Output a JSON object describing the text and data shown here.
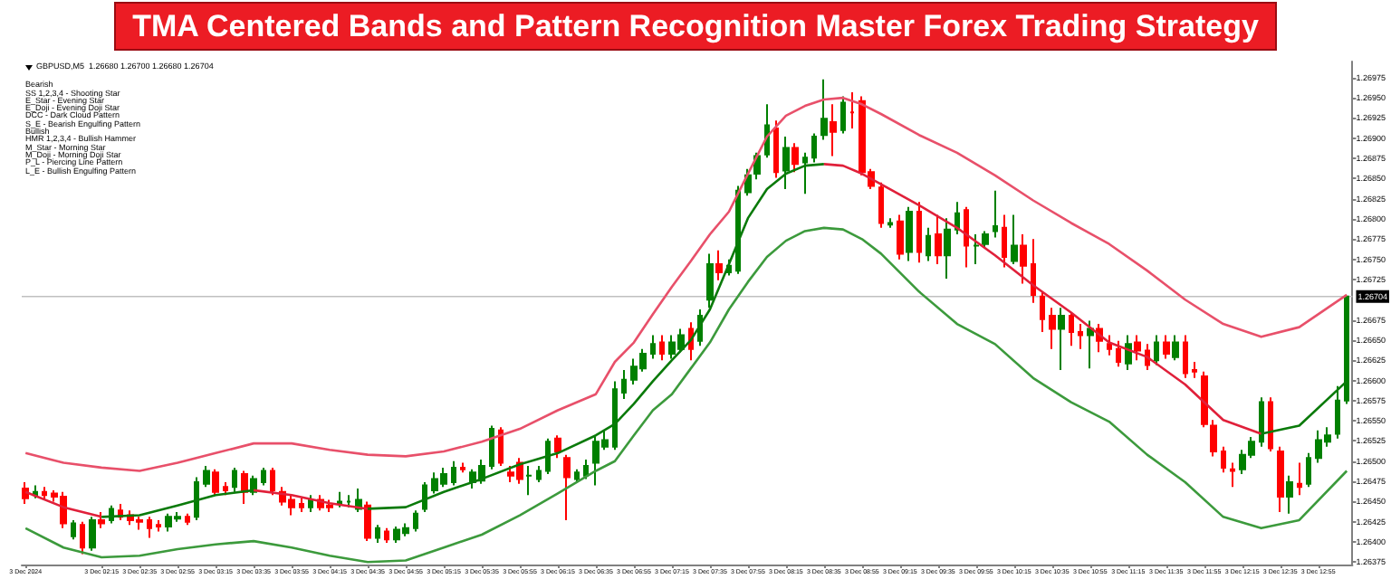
{
  "chart_data": {
    "type": "candlestick",
    "title": "TMA Centered Bands and Pattern Recognition Master Forex Trading Strategy",
    "annotations": [
      "GBPUSD,M5  1.26680 1.26700 1.26680 1.26704",
      "Bearish",
      "SS 1,2,3,4 - Shooting Star",
      "E_Star - Evening Star",
      "E_Doji - Evening Doji Star",
      "DCC - Dark Cloud Pattern",
      "S_E - Bearish Engulfing Pattern",
      "Bullish",
      "HMR 1,2,3,4 - Bullish Hammer",
      "M_Star - Morning Star",
      "M_Doji - Morning Doji Star",
      "P_L - Piercing Line Pattern",
      "L_E - Bullish Engulfing Pattern"
    ],
    "x": [
      "2024-12-03T01:35",
      "2024-12-03T01:40",
      "2024-12-03T01:45",
      "2024-12-03T01:50",
      "2024-12-03T01:55",
      "2024-12-03T02:00",
      "2024-12-03T02:05",
      "2024-12-03T02:10",
      "2024-12-03T02:15",
      "2024-12-03T02:20",
      "2024-12-03T02:25",
      "2024-12-03T02:30",
      "2024-12-03T02:35",
      "2024-12-03T02:40",
      "2024-12-03T02:45",
      "2024-12-03T02:50",
      "2024-12-03T02:55",
      "2024-12-03T03:00",
      "2024-12-03T03:05",
      "2024-12-03T03:10",
      "2024-12-03T03:15",
      "2024-12-03T03:20",
      "2024-12-03T03:25",
      "2024-12-03T03:30",
      "2024-12-03T03:35",
      "2024-12-03T03:40",
      "2024-12-03T03:45",
      "2024-12-03T03:50",
      "2024-12-03T03:55",
      "2024-12-03T04:00",
      "2024-12-03T04:05",
      "2024-12-03T04:10",
      "2024-12-03T04:15",
      "2024-12-03T04:20",
      "2024-12-03T04:25",
      "2024-12-03T04:30",
      "2024-12-03T04:35",
      "2024-12-03T04:40",
      "2024-12-03T04:45",
      "2024-12-03T04:50",
      "2024-12-03T04:55",
      "2024-12-03T05:00",
      "2024-12-03T05:05",
      "2024-12-03T05:10",
      "2024-12-03T05:15",
      "2024-12-03T05:20",
      "2024-12-03T05:25",
      "2024-12-03T05:30",
      "2024-12-03T05:35",
      "2024-12-03T05:40",
      "2024-12-03T05:45",
      "2024-12-03T05:50",
      "2024-12-03T05:55",
      "2024-12-03T06:00",
      "2024-12-03T06:05",
      "2024-12-03T06:10",
      "2024-12-03T06:15",
      "2024-12-03T06:20",
      "2024-12-03T06:25",
      "2024-12-03T06:30",
      "2024-12-03T06:35",
      "2024-12-03T06:40",
      "2024-12-03T06:45",
      "2024-12-03T06:50",
      "2024-12-03T06:55",
      "2024-12-03T07:00",
      "2024-12-03T07:05",
      "2024-12-03T07:10",
      "2024-12-03T07:15",
      "2024-12-03T07:20",
      "2024-12-03T07:25",
      "2024-12-03T07:30",
      "2024-12-03T07:35",
      "2024-12-03T07:40",
      "2024-12-03T07:45",
      "2024-12-03T07:50",
      "2024-12-03T07:55",
      "2024-12-03T08:00",
      "2024-12-03T08:05",
      "2024-12-03T08:10",
      "2024-12-03T08:15",
      "2024-12-03T08:20",
      "2024-12-03T08:25",
      "2024-12-03T08:30",
      "2024-12-03T08:35",
      "2024-12-03T08:40",
      "2024-12-03T08:45",
      "2024-12-03T08:50",
      "2024-12-03T08:55",
      "2024-12-03T09:00",
      "2024-12-03T09:05",
      "2024-12-03T09:10",
      "2024-12-03T09:15",
      "2024-12-03T09:20",
      "2024-12-03T09:25",
      "2024-12-03T09:30",
      "2024-12-03T09:35",
      "2024-12-03T09:40",
      "2024-12-03T09:45",
      "2024-12-03T09:50",
      "2024-12-03T09:55",
      "2024-12-03T10:00",
      "2024-12-03T10:05",
      "2024-12-03T10:10",
      "2024-12-03T10:15",
      "2024-12-03T10:20",
      "2024-12-03T10:25",
      "2024-12-03T10:30",
      "2024-12-03T10:35",
      "2024-12-03T10:40",
      "2024-12-03T10:45",
      "2024-12-03T10:50",
      "2024-12-03T10:55",
      "2024-12-03T11:00",
      "2024-12-03T11:05",
      "2024-12-03T11:10",
      "2024-12-03T11:15",
      "2024-12-03T11:20",
      "2024-12-03T11:25",
      "2024-12-03T11:30",
      "2024-12-03T11:35",
      "2024-12-03T11:40",
      "2024-12-03T11:45",
      "2024-12-03T11:50",
      "2024-12-03T11:55",
      "2024-12-03T12:00",
      "2024-12-03T12:05",
      "2024-12-03T12:10",
      "2024-12-03T12:15",
      "2024-12-03T12:20",
      "2024-12-03T12:25",
      "2024-12-03T12:30",
      "2024-12-03T12:35",
      "2024-12-03T12:40",
      "2024-12-03T12:45",
      "2024-12-03T12:50",
      "2024-12-03T12:55",
      "2024-12-03T13:00",
      "2024-12-03T13:05",
      "2024-12-03T13:10"
    ],
    "ohlc": [
      [
        1.26466,
        1.26474,
        1.26447,
        1.26454
      ],
      [
        1.26458,
        1.2647,
        1.26454,
        1.26462
      ],
      [
        1.26462,
        1.26468,
        1.26452,
        1.26458
      ],
      [
        1.2646,
        1.26464,
        1.2645,
        1.26456
      ],
      [
        1.26456,
        1.26462,
        1.26417,
        1.26423
      ],
      [
        1.26407,
        1.26427,
        1.26403,
        1.26423
      ],
      [
        1.26421,
        1.26425,
        1.26385,
        1.26393
      ],
      [
        1.26393,
        1.26431,
        1.26389,
        1.26427
      ],
      [
        1.26427,
        1.26437,
        1.26417,
        1.26423
      ],
      [
        1.26427,
        1.26445,
        1.26423,
        1.26441
      ],
      [
        1.26439,
        1.26447,
        1.26427,
        1.26431
      ],
      [
        1.26433,
        1.26439,
        1.26421,
        1.26427
      ],
      [
        1.26427,
        1.26431,
        1.26415,
        1.26425
      ],
      [
        1.26427,
        1.26431,
        1.26405,
        1.26417
      ],
      [
        1.26421,
        1.26427,
        1.26413,
        1.26419
      ],
      [
        1.26419,
        1.26435,
        1.26413,
        1.26431
      ],
      [
        1.26429,
        1.26437,
        1.26425,
        1.26431
      ],
      [
        1.26431,
        1.26435,
        1.26421,
        1.26425
      ],
      [
        1.26431,
        1.2648,
        1.26427,
        1.26474
      ],
      [
        1.26472,
        1.26494,
        1.26468,
        1.26488
      ],
      [
        1.26486,
        1.2649,
        1.26458,
        1.26462
      ],
      [
        1.26468,
        1.26474,
        1.26458,
        1.26464
      ],
      [
        1.26468,
        1.26492,
        1.26462,
        1.26488
      ],
      [
        1.26484,
        1.26488,
        1.26447,
        1.26462
      ],
      [
        1.26462,
        1.26482,
        1.26458,
        1.26478
      ],
      [
        1.26474,
        1.26492,
        1.2647,
        1.26488
      ],
      [
        1.26488,
        1.26492,
        1.26458,
        1.26464
      ],
      [
        1.26462,
        1.26468,
        1.26445,
        1.2645
      ],
      [
        1.26452,
        1.26458,
        1.26433,
        1.26443
      ],
      [
        1.26447,
        1.26454,
        1.26437,
        1.26443
      ],
      [
        1.26443,
        1.26458,
        1.26437,
        1.26452
      ],
      [
        1.26452,
        1.26458,
        1.26439,
        1.26443
      ],
      [
        1.26445,
        1.26452,
        1.26437,
        1.26443
      ],
      [
        1.26447,
        1.26462,
        1.26443,
        1.2645
      ],
      [
        1.2645,
        1.26458,
        1.26443,
        1.2645
      ],
      [
        1.26441,
        1.26466,
        1.26437,
        1.26452
      ],
      [
        1.26445,
        1.2645,
        1.26401,
        1.26405
      ],
      [
        1.26405,
        1.26421,
        1.26399,
        1.26417
      ],
      [
        1.26413,
        1.26417,
        1.26399,
        1.26403
      ],
      [
        1.26403,
        1.26419,
        1.26399,
        1.26415
      ],
      [
        1.26411,
        1.26423,
        1.26407,
        1.26417
      ],
      [
        1.26417,
        1.26439,
        1.26413,
        1.26435
      ],
      [
        1.26441,
        1.26474,
        1.26437,
        1.2647
      ],
      [
        1.26464,
        1.26486,
        1.2646,
        1.26478
      ],
      [
        1.26472,
        1.26492,
        1.26468,
        1.26484
      ],
      [
        1.26474,
        1.265,
        1.2647,
        1.26492
      ],
      [
        1.26492,
        1.26498,
        1.26486,
        1.2649
      ],
      [
        1.26474,
        1.2649,
        1.26466,
        1.26486
      ],
      [
        1.26476,
        1.26502,
        1.26472,
        1.26494
      ],
      [
        1.26494,
        1.26544,
        1.2649,
        1.2654
      ],
      [
        1.26538,
        1.26542,
        1.26494,
        1.26498
      ],
      [
        1.26486,
        1.26494,
        1.26474,
        1.26482
      ],
      [
        1.26498,
        1.26504,
        1.26472,
        1.26478
      ],
      [
        1.26482,
        1.26494,
        1.26458,
        1.26482
      ],
      [
        1.26478,
        1.26494,
        1.26474,
        1.26488
      ],
      [
        1.26488,
        1.26528,
        1.26484,
        1.26524
      ],
      [
        1.26528,
        1.26532,
        1.26504,
        1.26512
      ],
      [
        1.26504,
        1.26508,
        1.26427,
        1.2648
      ],
      [
        1.26478,
        1.2649,
        1.26474,
        1.26486
      ],
      [
        1.26482,
        1.26502,
        1.26478,
        1.26494
      ],
      [
        1.26498,
        1.2653,
        1.2647,
        1.26524
      ],
      [
        1.26518,
        1.26538,
        1.26514,
        1.26526
      ],
      [
        1.26518,
        1.26599,
        1.26514,
        1.26589
      ],
      [
        1.26585,
        1.26613,
        1.26577,
        1.26601
      ],
      [
        1.26601,
        1.26627,
        1.26595,
        1.26617
      ],
      [
        1.26615,
        1.26639,
        1.26611,
        1.26633
      ],
      [
        1.26633,
        1.26656,
        1.26627,
        1.26645
      ],
      [
        1.26647,
        1.26656,
        1.26625,
        1.26633
      ],
      [
        1.26633,
        1.26656,
        1.26627,
        1.26647
      ],
      [
        1.26639,
        1.26664,
        1.26635,
        1.26656
      ],
      [
        1.26664,
        1.26672,
        1.26625,
        1.26639
      ],
      [
        1.26649,
        1.26688,
        1.26643,
        1.2668
      ],
      [
        1.267,
        1.26757,
        1.2669,
        1.26744
      ],
      [
        1.26744,
        1.26761,
        1.26724,
        1.26734
      ],
      [
        1.26734,
        1.2675,
        1.2673,
        1.26742
      ],
      [
        1.26736,
        1.26841,
        1.26732,
        1.26835
      ],
      [
        1.26833,
        1.26862,
        1.26829,
        1.26854
      ],
      [
        1.26856,
        1.26882,
        1.26849,
        1.26878
      ],
      [
        1.2688,
        1.26942,
        1.26876,
        1.26916
      ],
      [
        1.26912,
        1.26922,
        1.26851,
        1.26858
      ],
      [
        1.2686,
        1.26902,
        1.26837,
        1.26888
      ],
      [
        1.26888,
        1.26894,
        1.26858,
        1.26868
      ],
      [
        1.2687,
        1.26882,
        1.26831,
        1.26876
      ],
      [
        1.26876,
        1.26906,
        1.2687,
        1.26902
      ],
      [
        1.26904,
        1.26973,
        1.26898,
        1.26924
      ],
      [
        1.2692,
        1.26942,
        1.26878,
        1.26908
      ],
      [
        1.2691,
        1.26952,
        1.26906,
        1.26944
      ],
      [
        1.26932,
        1.26957,
        1.26912,
        1.26932
      ],
      [
        1.26946,
        1.26952,
        1.26854,
        1.26858
      ],
      [
        1.26858,
        1.26862,
        1.26837,
        1.26841
      ],
      [
        1.26839,
        1.26845,
        1.26789,
        1.26795
      ],
      [
        1.26793,
        1.26801,
        1.26789,
        1.26795
      ],
      [
        1.26797,
        1.26805,
        1.2675,
        1.26757
      ],
      [
        1.26759,
        1.26815,
        1.26748,
        1.26809
      ],
      [
        1.26809,
        1.26821,
        1.26746,
        1.26759
      ],
      [
        1.26755,
        1.26789,
        1.26748,
        1.26779
      ],
      [
        1.26781,
        1.26805,
        1.26744,
        1.26755
      ],
      [
        1.26755,
        1.26801,
        1.26726,
        1.26787
      ],
      [
        1.26787,
        1.26821,
        1.26781,
        1.26807
      ],
      [
        1.26811,
        1.26815,
        1.2674,
        1.26767
      ],
      [
        1.26767,
        1.26781,
        1.26744,
        1.26767
      ],
      [
        1.26769,
        1.26785,
        1.26765,
        1.26781
      ],
      [
        1.26785,
        1.26835,
        1.26777,
        1.26791
      ],
      [
        1.26789,
        1.26805,
        1.2674,
        1.26753
      ],
      [
        1.26748,
        1.26805,
        1.26744,
        1.26767
      ],
      [
        1.26767,
        1.26781,
        1.2672,
        1.26742
      ],
      [
        1.26744,
        1.26775,
        1.26696,
        1.26706
      ],
      [
        1.26704,
        1.2671,
        1.2666,
        1.26676
      ],
      [
        1.2668,
        1.2669,
        1.26639,
        1.26664
      ],
      [
        1.26664,
        1.2669,
        1.26613,
        1.2668
      ],
      [
        1.2668,
        1.26684,
        1.26643,
        1.2666
      ],
      [
        1.2666,
        1.2667,
        1.26639,
        1.26656
      ],
      [
        1.26656,
        1.26674,
        1.26615,
        1.26664
      ],
      [
        1.26664,
        1.2667,
        1.26635,
        1.26649
      ],
      [
        1.26645,
        1.26656,
        1.26631,
        1.26639
      ],
      [
        1.26639,
        1.26649,
        1.26617,
        1.26623
      ],
      [
        1.26621,
        1.26656,
        1.26613,
        1.26645
      ],
      [
        1.26647,
        1.26656,
        1.26625,
        1.26637
      ],
      [
        1.26637,
        1.26645,
        1.26613,
        1.26619
      ],
      [
        1.26625,
        1.26656,
        1.26619,
        1.26647
      ],
      [
        1.26647,
        1.26656,
        1.26627,
        1.26633
      ],
      [
        1.26629,
        1.26656,
        1.26625,
        1.26647
      ],
      [
        1.26647,
        1.26656,
        1.26603,
        1.26609
      ],
      [
        1.26613,
        1.26623,
        1.26603,
        1.26611
      ],
      [
        1.26605,
        1.26611,
        1.26542,
        1.26546
      ],
      [
        1.26544,
        1.26551,
        1.26506,
        1.26512
      ],
      [
        1.26512,
        1.26518,
        1.26486,
        1.26492
      ],
      [
        1.2649,
        1.26498,
        1.26468,
        1.26488
      ],
      [
        1.2649,
        1.26514,
        1.26484,
        1.26508
      ],
      [
        1.26508,
        1.2653,
        1.26504,
        1.26524
      ],
      [
        1.26524,
        1.26579,
        1.26518,
        1.26573
      ],
      [
        1.26573,
        1.26579,
        1.26512,
        1.26516
      ],
      [
        1.26512,
        1.26518,
        1.26437,
        1.26456
      ],
      [
        1.26456,
        1.26482,
        1.26435,
        1.26474
      ],
      [
        1.26472,
        1.26498,
        1.26458,
        1.26468
      ],
      [
        1.26472,
        1.2651,
        1.26468,
        1.26504
      ],
      [
        1.26504,
        1.26538,
        1.26498,
        1.26526
      ],
      [
        1.26524,
        1.26542,
        1.26518,
        1.26532
      ],
      [
        1.26534,
        1.26593,
        1.26528,
        1.26575
      ],
      [
        1.26575,
        1.26704,
        1.26571,
        1.26704
      ]
    ],
    "series": [
      {
        "type": "line",
        "color": "#e8506a",
        "x": [
          "2024-12-03T01:35",
          "2024-12-03T01:55",
          "2024-12-03T02:15",
          "2024-12-03T02:35",
          "2024-12-03T02:55",
          "2024-12-03T03:15",
          "2024-12-03T03:35",
          "2024-12-03T03:55",
          "2024-12-03T04:15",
          "2024-12-03T04:35",
          "2024-12-03T04:55",
          "2024-12-03T05:15",
          "2024-12-03T05:35",
          "2024-12-03T05:55",
          "2024-12-03T06:15",
          "2024-12-03T06:35",
          "2024-12-03T06:45",
          "2024-12-03T06:55",
          "2024-12-03T07:05",
          "2024-12-03T07:15",
          "2024-12-03T07:25",
          "2024-12-03T07:35",
          "2024-12-03T07:45",
          "2024-12-03T07:55",
          "2024-12-03T08:05",
          "2024-12-03T08:15",
          "2024-12-03T08:25",
          "2024-12-03T08:35",
          "2024-12-03T08:45",
          "2024-12-03T08:55",
          "2024-12-03T09:05",
          "2024-12-03T09:25",
          "2024-12-03T09:45",
          "2024-12-03T10:05",
          "2024-12-03T10:25",
          "2024-12-03T10:45",
          "2024-12-03T11:05",
          "2024-12-03T11:25",
          "2024-12-03T11:45",
          "2024-12-03T12:05",
          "2024-12-03T12:25",
          "2024-12-03T12:45",
          "2024-12-03T13:10"
        ],
        "values": [
          1.2651,
          1.26498,
          1.26492,
          1.26488,
          1.26498,
          1.2651,
          1.26522,
          1.26522,
          1.26514,
          1.26508,
          1.26506,
          1.26512,
          1.26524,
          1.2654,
          1.26563,
          1.26583,
          1.26623,
          1.26647,
          1.26682,
          1.26716,
          1.26748,
          1.26781,
          1.26809,
          1.26856,
          1.26902,
          1.26928,
          1.2694,
          1.26948,
          1.2695,
          1.26942,
          1.2693,
          1.26904,
          1.26882,
          1.26854,
          1.26823,
          1.26795,
          1.26769,
          1.26736,
          1.267,
          1.2667,
          1.26654,
          1.26666,
          1.26706
        ]
      },
      {
        "type": "line",
        "color": "#3c9a3c",
        "x": [
          "2024-12-03T01:35",
          "2024-12-03T01:55",
          "2024-12-03T02:15",
          "2024-12-03T02:35",
          "2024-12-03T02:55",
          "2024-12-03T03:15",
          "2024-12-03T03:35",
          "2024-12-03T03:55",
          "2024-12-03T04:15",
          "2024-12-03T04:35",
          "2024-12-03T04:55",
          "2024-12-03T05:15",
          "2024-12-03T05:35",
          "2024-12-03T05:55",
          "2024-12-03T06:15",
          "2024-12-03T06:35",
          "2024-12-03T06:45",
          "2024-12-03T06:55",
          "2024-12-03T07:05",
          "2024-12-03T07:15",
          "2024-12-03T07:25",
          "2024-12-03T07:35",
          "2024-12-03T07:45",
          "2024-12-03T07:55",
          "2024-12-03T08:05",
          "2024-12-03T08:15",
          "2024-12-03T08:25",
          "2024-12-03T08:35",
          "2024-12-03T08:45",
          "2024-12-03T08:55",
          "2024-12-03T09:05",
          "2024-12-03T09:25",
          "2024-12-03T09:45",
          "2024-12-03T10:05",
          "2024-12-03T10:25",
          "2024-12-03T10:45",
          "2024-12-03T11:05",
          "2024-12-03T11:25",
          "2024-12-03T11:45",
          "2024-12-03T12:05",
          "2024-12-03T12:25",
          "2024-12-03T12:45",
          "2024-12-03T13:10"
        ],
        "values": [
          1.26417,
          1.26393,
          1.26381,
          1.26383,
          1.26391,
          1.26397,
          1.26401,
          1.26393,
          1.26383,
          1.26375,
          1.26377,
          1.26393,
          1.26409,
          1.26433,
          1.2646,
          1.26488,
          1.265,
          1.26532,
          1.26563,
          1.26583,
          1.26615,
          1.26647,
          1.26688,
          1.26722,
          1.26753,
          1.26773,
          1.26785,
          1.26789,
          1.26787,
          1.26775,
          1.26757,
          1.2671,
          1.2667,
          1.26645,
          1.26603,
          1.26573,
          1.26549,
          1.26508,
          1.26474,
          1.26431,
          1.26417,
          1.26427,
          1.26488
        ]
      },
      {
        "type": "line",
        "color": "#e0203a",
        "x": [
          "2024-12-03T01:35",
          "2024-12-03T01:55",
          "2024-12-03T02:15"
        ],
        "values": [
          1.26462,
          1.26443,
          1.26431
        ]
      },
      {
        "type": "line",
        "color": "#0a7a0a",
        "x": [
          "2024-12-03T02:15",
          "2024-12-03T02:35",
          "2024-12-03T02:55",
          "2024-12-03T03:15",
          "2024-12-03T03:35"
        ],
        "values": [
          1.26431,
          1.26433,
          1.26445,
          1.26458,
          1.26464
        ]
      },
      {
        "type": "line",
        "color": "#e0203a",
        "x": [
          "2024-12-03T03:35",
          "2024-12-03T03:55",
          "2024-12-03T04:15",
          "2024-12-03T04:35"
        ],
        "values": [
          1.26464,
          1.26458,
          1.26448,
          1.26441
        ]
      },
      {
        "type": "line",
        "color": "#0a7a0a",
        "x": [
          "2024-12-03T04:35",
          "2024-12-03T04:55",
          "2024-12-03T05:15",
          "2024-12-03T05:35",
          "2024-12-03T05:55",
          "2024-12-03T06:15",
          "2024-12-03T06:35",
          "2024-12-03T06:45",
          "2024-12-03T06:55",
          "2024-12-03T07:05",
          "2024-12-03T07:15",
          "2024-12-03T07:25",
          "2024-12-03T07:35",
          "2024-12-03T07:45",
          "2024-12-03T07:55",
          "2024-12-03T08:05",
          "2024-12-03T08:15",
          "2024-12-03T08:25",
          "2024-12-03T08:35"
        ],
        "values": [
          1.26441,
          1.26443,
          1.26462,
          1.26478,
          1.26496,
          1.2651,
          1.26532,
          1.26546,
          1.26571,
          1.26599,
          1.26625,
          1.2665,
          1.26688,
          1.26744,
          1.26801,
          1.26837,
          1.26856,
          1.26866,
          1.26868
        ]
      },
      {
        "type": "line",
        "color": "#e0203a",
        "x": [
          "2024-12-03T08:35",
          "2024-12-03T08:45",
          "2024-12-03T08:55",
          "2024-12-03T09:05",
          "2024-12-03T09:25",
          "2024-12-03T09:45",
          "2024-12-03T10:05",
          "2024-12-03T10:25",
          "2024-12-03T10:45",
          "2024-12-03T11:05",
          "2024-12-03T11:25",
          "2024-12-03T11:45",
          "2024-12-03T12:05",
          "2024-12-03T12:25"
        ],
        "values": [
          1.26868,
          1.26866,
          1.26856,
          1.26843,
          1.26817,
          1.26789,
          1.26755,
          1.26718,
          1.26684,
          1.26647,
          1.26629,
          1.26595,
          1.26551,
          1.26534
        ]
      },
      {
        "type": "line",
        "color": "#0a7a0a",
        "x": [
          "2024-12-03T12:25",
          "2024-12-03T12:45",
          "2024-12-03T13:10"
        ],
        "values": [
          1.26534,
          1.26544,
          1.26599
        ]
      }
    ],
    "xlim": [
      "2024-12-03T01:33",
      "2024-12-03T13:13"
    ],
    "xticks": [
      {
        "value": "2024-12-03T01:35",
        "label": "3 Dec 2024"
      },
      {
        "value": "2024-12-03T02:15",
        "label": "3 Dec 02:15"
      },
      {
        "value": "2024-12-03T02:35",
        "label": "3 Dec 02:35"
      },
      {
        "value": "2024-12-03T02:55",
        "label": "3 Dec 02:55"
      },
      {
        "value": "2024-12-03T03:15",
        "label": "3 Dec 03:15"
      },
      {
        "value": "2024-12-03T03:35",
        "label": "3 Dec 03:35"
      },
      {
        "value": "2024-12-03T03:55",
        "label": "3 Dec 03:55"
      },
      {
        "value": "2024-12-03T04:15",
        "label": "3 Dec 04:15"
      },
      {
        "value": "2024-12-03T04:35",
        "label": "3 Dec 04:35"
      },
      {
        "value": "2024-12-03T04:55",
        "label": "3 Dec 04:55"
      },
      {
        "value": "2024-12-03T05:15",
        "label": "3 Dec 05:15"
      },
      {
        "value": "2024-12-03T05:35",
        "label": "3 Dec 05:35"
      },
      {
        "value": "2024-12-03T05:55",
        "label": "3 Dec 05:55"
      },
      {
        "value": "2024-12-03T06:15",
        "label": "3 Dec 06:15"
      },
      {
        "value": "2024-12-03T06:35",
        "label": "3 Dec 06:35"
      },
      {
        "value": "2024-12-03T06:55",
        "label": "3 Dec 06:55"
      },
      {
        "value": "2024-12-03T07:15",
        "label": "3 Dec 07:15"
      },
      {
        "value": "2024-12-03T07:35",
        "label": "3 Dec 07:35"
      },
      {
        "value": "2024-12-03T07:55",
        "label": "3 Dec 07:55"
      },
      {
        "value": "2024-12-03T08:15",
        "label": "3 Dec 08:15"
      },
      {
        "value": "2024-12-03T08:35",
        "label": "3 Dec 08:35"
      },
      {
        "value": "2024-12-03T08:55",
        "label": "3 Dec 08:55"
      },
      {
        "value": "2024-12-03T09:15",
        "label": "3 Dec 09:15"
      },
      {
        "value": "2024-12-03T09:35",
        "label": "3 Dec 09:35"
      },
      {
        "value": "2024-12-03T09:55",
        "label": "3 Dec 09:55"
      },
      {
        "value": "2024-12-03T10:15",
        "label": "3 Dec 10:15"
      },
      {
        "value": "2024-12-03T10:35",
        "label": "3 Dec 10:35"
      },
      {
        "value": "2024-12-03T10:55",
        "label": "3 Dec 10:55"
      },
      {
        "value": "2024-12-03T11:15",
        "label": "3 Dec 11:15"
      },
      {
        "value": "2024-12-03T11:35",
        "label": "3 Dec 11:35"
      },
      {
        "value": "2024-12-03T11:55",
        "label": "3 Dec 11:55"
      },
      {
        "value": "2024-12-03T12:15",
        "label": "3 Dec 12:15"
      },
      {
        "value": "2024-12-03T12:35",
        "label": "3 Dec 12:35"
      },
      {
        "value": "2024-12-03T12:55",
        "label": "3 Dec 12:55"
      }
    ],
    "ylim": [
      1.26372,
      1.26995
    ],
    "yticks": [
      1.26375,
      {
        "value": 1.264,
        "label": "1.26400"
      },
      1.26425,
      {
        "value": 1.2645,
        "label": "1.26450"
      },
      1.26475,
      {
        "value": 1.265,
        "label": "1.26500"
      },
      1.26525,
      {
        "value": 1.2655,
        "label": "1.26550"
      },
      1.26575,
      {
        "value": 1.266,
        "label": "1.26600"
      },
      1.26625,
      {
        "value": 1.2665,
        "label": "1.26650"
      },
      1.26675,
      1.26725,
      {
        "value": 1.2675,
        "label": "1.26750"
      },
      1.26775,
      {
        "value": 1.268,
        "label": "1.26800"
      },
      1.26825,
      {
        "value": 1.2685,
        "label": "1.26850"
      },
      1.26875,
      {
        "value": 1.269,
        "label": "1.26900"
      },
      1.26925,
      {
        "value": 1.2695,
        "label": "1.26950"
      },
      1.26975
    ],
    "ref_lines": [
      {
        "axis": "y",
        "value": 1.26704,
        "label": "1.26704",
        "color": "#c0c0c0"
      }
    ]
  }
}
